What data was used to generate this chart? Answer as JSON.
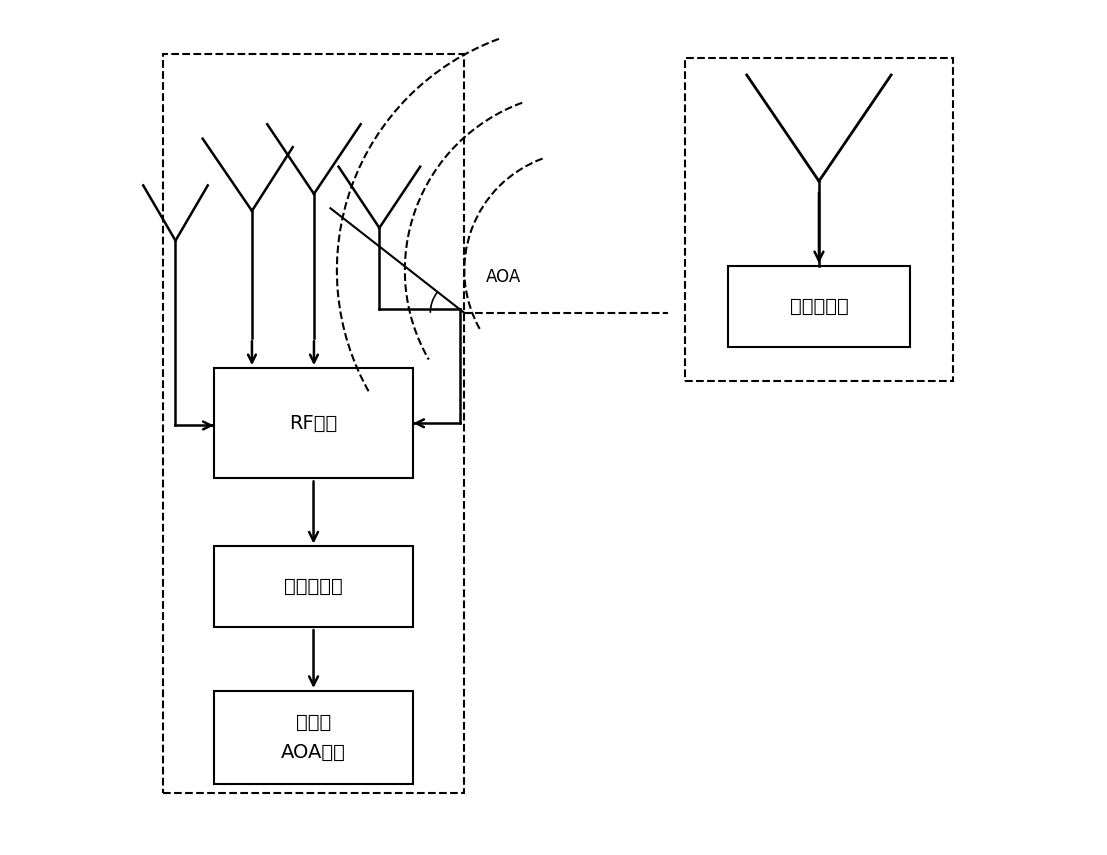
{
  "bg_color": "#ffffff",
  "line_color": "#000000",
  "rf_label": "RF切换",
  "bt_rx_label": "蓝牙接收端",
  "proc_label1": "处理器",
  "proc_label2": "AOA估计",
  "bt_tx_label": "蓝牙发射端",
  "aoa_label": "AOA",
  "font_size": 14,
  "font_size_small": 12
}
